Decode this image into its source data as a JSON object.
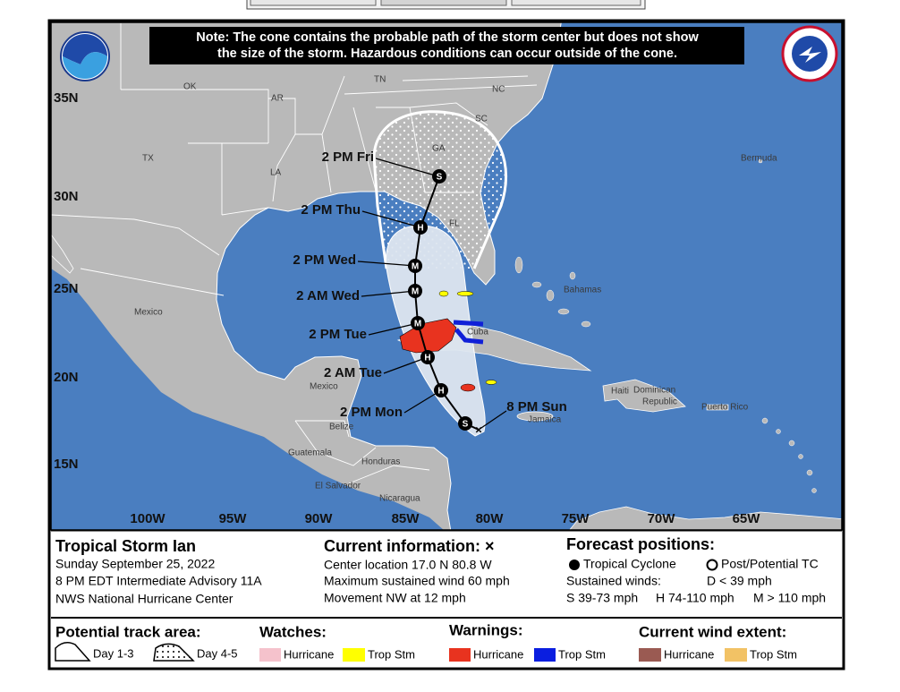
{
  "map": {
    "note": [
      "Note: The cone contains the probable path of the storm center but does not show",
      "the size of the storm. Hazardous conditions can occur outside of the cone."
    ],
    "places": [
      "OK",
      "AR",
      "TN",
      "NC",
      "SC",
      "GA",
      "TX",
      "LA",
      "FL",
      "Bermuda",
      "Mexico",
      "Bahamas",
      "Cuba",
      "Mexico",
      "Belize",
      "Guatemala",
      "Honduras",
      "El Salvador",
      "Nicaragua",
      "Jamaica",
      "Haiti",
      "Dominican",
      "Republic",
      "Puerto Rico"
    ],
    "latitudes": [
      "35N",
      "30N",
      "25N",
      "20N",
      "15N"
    ],
    "longitudes": [
      "100W",
      "95W",
      "90W",
      "85W",
      "80W",
      "75W",
      "70W",
      "65W"
    ],
    "forecast_points": [
      {
        "label": "8 PM Sun",
        "marker": "S"
      },
      {
        "label": "2 PM Mon",
        "marker": "H"
      },
      {
        "label": "2 AM Tue",
        "marker": "H"
      },
      {
        "label": "2 PM Tue",
        "marker": "M"
      },
      {
        "label": "2 AM Wed",
        "marker": "M"
      },
      {
        "label": "2 PM Wed",
        "marker": "M"
      },
      {
        "label": "2 PM Thu",
        "marker": "H"
      },
      {
        "label": "2 PM Fri",
        "marker": "S"
      }
    ]
  },
  "info": {
    "storm": {
      "name": "Tropical Storm Ian",
      "date": "Sunday September 25, 2022",
      "advisory": "8 PM EDT Intermediate Advisory 11A",
      "center": "NWS National Hurricane Center"
    },
    "current": {
      "title": "Current information: ×",
      "lines": [
        "Center location 17.0 N 80.8 W",
        "Maximum sustained wind 60 mph",
        "Movement NW at 12 mph"
      ]
    },
    "forecast": {
      "title": "Forecast positions:",
      "tropical_cyclone": "Tropical Cyclone",
      "post_potential": "Post/Potential TC",
      "winds_label": "Sustained winds:",
      "winds": [
        "D < 39 mph",
        "S 39-73 mph",
        "H 74-110 mph",
        "M > 110 mph"
      ]
    }
  },
  "legend": {
    "track": {
      "title": "Potential track area:",
      "day13": "Day 1-3",
      "day45": "Day 4-5"
    },
    "watches": {
      "title": "Watches:",
      "items": [
        "Hurricane",
        "Trop Stm"
      ]
    },
    "warnings": {
      "title": "Warnings:",
      "items": [
        "Hurricane",
        "Trop Stm"
      ]
    },
    "wind": {
      "title": "Current wind extent:",
      "items": [
        "Hurricane",
        "Trop Stm"
      ]
    }
  }
}
